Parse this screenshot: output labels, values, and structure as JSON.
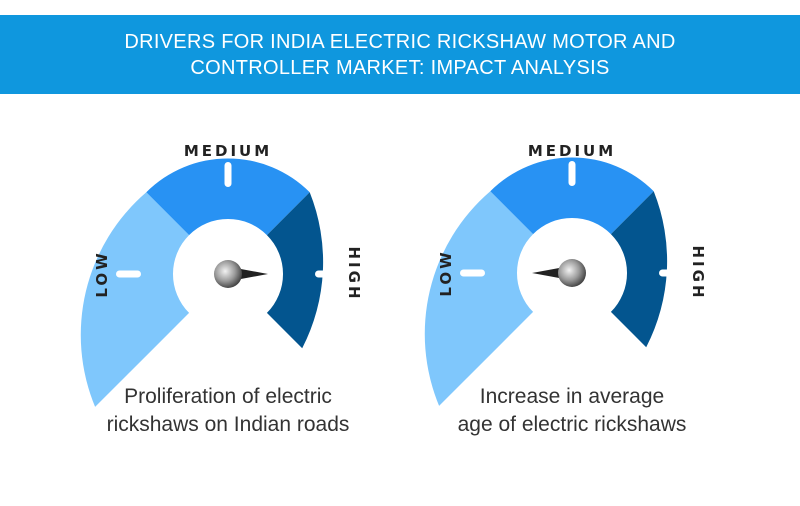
{
  "header": {
    "title_line1": "DRIVERS FOR INDIA ELECTRIC RICKSHAW MOTOR AND",
    "title_line2": "CONTROLLER MARKET: IMPACT ANALYSIS"
  },
  "gauges": [
    {
      "labels": {
        "low": "LOW",
        "medium": "MEDIUM",
        "high": "HIGH"
      },
      "caption_line1": "Proliferation of electric",
      "caption_line2": "rickshaws on Indian roads",
      "level": "high"
    },
    {
      "labels": {
        "low": "LOW",
        "medium": "MEDIUM",
        "high": "HIGH"
      },
      "caption_line1": "Increase in average",
      "caption_line2": "age of electric rickshaws",
      "level": "low"
    }
  ],
  "colors": {
    "header_bg": "#0f97de",
    "low": "#7fc7fc",
    "medium": "#2892f3",
    "high": "#03558f"
  }
}
